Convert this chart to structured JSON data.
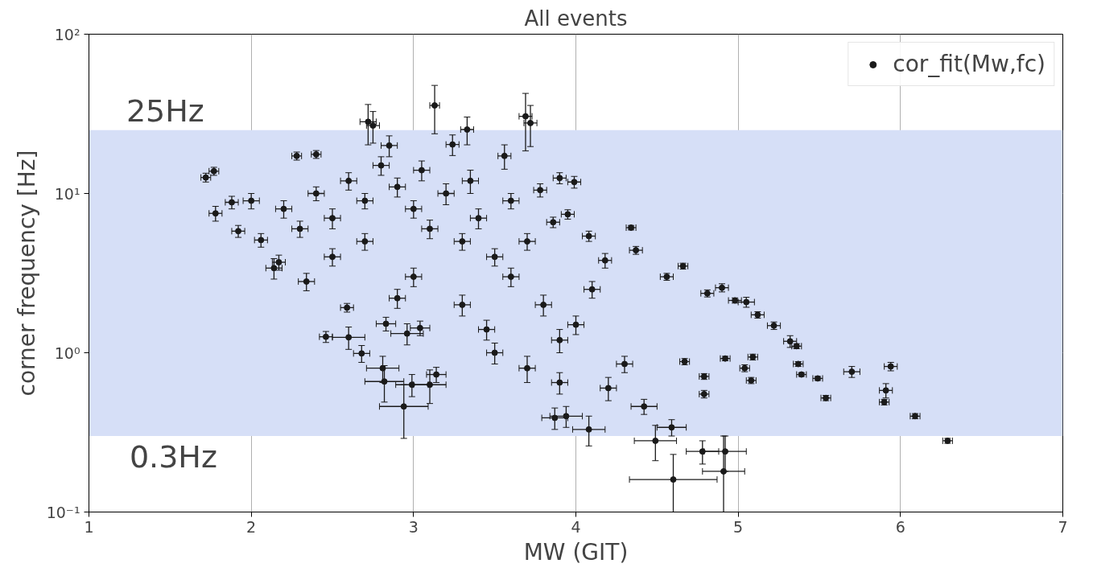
{
  "chart_data": {
    "type": "scatter",
    "title": "All events",
    "xlabel": "MW (GIT)",
    "ylabel": "corner frequency [Hz]",
    "xlim": [
      1,
      7
    ],
    "xticks": [
      1,
      2,
      3,
      4,
      5,
      6,
      7
    ],
    "ylim": [
      0.1,
      100
    ],
    "yticks": [
      {
        "value": 0.1,
        "label": "10⁻¹"
      },
      {
        "value": 1,
        "label": "10⁰"
      },
      {
        "value": 10,
        "label": "10¹"
      },
      {
        "value": 100,
        "label": "10²"
      }
    ],
    "log": "y",
    "grid": true,
    "legend": "top right",
    "marker": "circle",
    "bands": [
      {
        "axis": "y",
        "from": 0.3,
        "to": 25,
        "color": "#d6dff7"
      }
    ],
    "annotations": [
      {
        "text": "25Hz",
        "x": 1.23,
        "y": 25
      },
      {
        "text": "0.3Hz",
        "x": 1.25,
        "y": 0.3
      }
    ],
    "series": [
      {
        "name": "cor_fit(Mw,fc)",
        "color": "#1a1a1a",
        "x": [
          6.29,
          6.09,
          5.94,
          5.91,
          5.9,
          5.7,
          5.54,
          5.49,
          5.39,
          5.37,
          5.32,
          5.36,
          5.22,
          5.12,
          5.05,
          4.98,
          4.9,
          4.81,
          4.66,
          4.56,
          4.34,
          4.37,
          4.67,
          4.79,
          4.79,
          4.92,
          5.09,
          5.08,
          5.04,
          4.78,
          4.92,
          4.91,
          4.6,
          4.59,
          4.49,
          4.42,
          3.94,
          4.08,
          3.87,
          2.94,
          2.99,
          3.1,
          3.14,
          2.81,
          2.82,
          2.68,
          2.6,
          2.96,
          2.83,
          3.04,
          2.46,
          2.59,
          1.72,
          1.77,
          1.78,
          1.88,
          1.92,
          2.06,
          2.14,
          2.17,
          2.34,
          2.28,
          2.4,
          3.13,
          2.72,
          2.75,
          3.33,
          3.69,
          3.72,
          3.24,
          3.56,
          3.78,
          3.99,
          3.9,
          3.95,
          4.08,
          3.86,
          4.18,
          2.0,
          2.2,
          2.4,
          2.5,
          2.6,
          2.7,
          2.8,
          2.9,
          3.0,
          3.1,
          3.2,
          3.3,
          3.4,
          3.5,
          3.6,
          3.7,
          3.8,
          3.9,
          3.5,
          3.7,
          3.9,
          4.0,
          4.2,
          4.3,
          4.1,
          3.3,
          3.0,
          2.7,
          2.5,
          2.3,
          2.85,
          3.05,
          3.35,
          3.6,
          2.9,
          3.45
        ],
        "values": [
          0.28,
          0.4,
          0.82,
          0.58,
          0.49,
          0.76,
          0.52,
          0.69,
          0.73,
          0.85,
          1.18,
          1.1,
          1.48,
          1.73,
          2.08,
          2.13,
          2.56,
          2.36,
          3.5,
          3.0,
          6.1,
          4.4,
          0.88,
          0.71,
          0.55,
          0.92,
          0.94,
          0.67,
          0.8,
          0.24,
          0.24,
          0.18,
          0.16,
          0.34,
          0.28,
          0.46,
          0.4,
          0.33,
          0.39,
          0.46,
          0.63,
          0.63,
          0.73,
          0.8,
          0.66,
          0.99,
          1.25,
          1.32,
          1.52,
          1.43,
          1.26,
          1.92,
          12.6,
          13.8,
          7.5,
          8.8,
          5.8,
          5.1,
          3.4,
          3.7,
          2.8,
          17.2,
          17.6,
          35.7,
          28.2,
          26.7,
          25.2,
          30.5,
          27.7,
          20.3,
          17.2,
          10.5,
          11.8,
          12.5,
          7.4,
          5.4,
          6.6,
          3.8,
          9,
          8,
          10,
          7,
          12,
          9,
          15,
          11,
          8,
          6,
          10,
          5,
          7,
          4,
          3,
          5,
          2,
          1.2,
          1.0,
          0.8,
          0.65,
          1.5,
          0.6,
          0.85,
          2.5,
          2.0,
          3.0,
          5.0,
          4.0,
          6.0,
          20,
          14,
          12,
          9,
          2.2,
          1.4
        ],
        "xerrors": [
          0.03,
          0.03,
          0.04,
          0.04,
          0.03,
          0.05,
          0.03,
          0.03,
          0.03,
          0.03,
          0.04,
          0.03,
          0.04,
          0.04,
          0.05,
          0.04,
          0.04,
          0.04,
          0.03,
          0.04,
          0.03,
          0.04,
          0.03,
          0.03,
          0.03,
          0.03,
          0.03,
          0.03,
          0.03,
          0.1,
          0.13,
          0.13,
          0.27,
          0.09,
          0.13,
          0.08,
          0.1,
          0.1,
          0.08,
          0.15,
          0.1,
          0.1,
          0.06,
          0.1,
          0.12,
          0.05,
          0.1,
          0.1,
          0.06,
          0.06,
          0.04,
          0.04,
          0.03,
          0.03,
          0.04,
          0.04,
          0.04,
          0.04,
          0.05,
          0.04,
          0.05,
          0.03,
          0.03,
          0.03,
          0.05,
          0.04,
          0.04,
          0.04,
          0.04,
          0.04,
          0.04,
          0.04,
          0.04,
          0.04,
          0.04,
          0.04,
          0.04,
          0.04,
          0.05,
          0.05,
          0.05,
          0.05,
          0.05,
          0.05,
          0.05,
          0.05,
          0.05,
          0.05,
          0.05,
          0.05,
          0.05,
          0.05,
          0.05,
          0.05,
          0.05,
          0.05,
          0.05,
          0.05,
          0.05,
          0.05,
          0.05,
          0.05,
          0.05,
          0.05,
          0.05,
          0.05,
          0.05,
          0.05,
          0.05,
          0.05,
          0.05,
          0.05,
          0.05,
          0.05
        ],
        "errors": [
          0.01,
          0.015,
          0.05,
          0.06,
          0.02,
          0.06,
          0.02,
          0.02,
          0.02,
          0.03,
          0.1,
          0.04,
          0.08,
          0.08,
          0.15,
          0.08,
          0.15,
          0.12,
          0.15,
          0.15,
          0.2,
          0.25,
          0.04,
          0.03,
          0.03,
          0.03,
          0.04,
          0.03,
          0.04,
          0.04,
          0.06,
          0.12,
          0.07,
          0.04,
          0.07,
          0.05,
          0.06,
          0.07,
          0.06,
          0.17,
          0.1,
          0.15,
          0.08,
          0.15,
          0.17,
          0.12,
          0.2,
          0.2,
          0.15,
          0.15,
          0.1,
          0.12,
          0.8,
          0.8,
          0.8,
          0.8,
          0.5,
          0.5,
          0.5,
          0.4,
          0.35,
          1.0,
          1.0,
          12,
          8,
          6,
          5,
          12,
          8,
          3,
          3,
          1,
          1,
          1,
          0.5,
          0.4,
          0.5,
          0.4,
          1,
          1,
          1,
          1,
          1.5,
          1,
          2,
          1.5,
          1,
          0.8,
          1.5,
          0.6,
          1,
          0.5,
          0.4,
          0.6,
          0.3,
          0.2,
          0.15,
          0.15,
          0.1,
          0.2,
          0.1,
          0.1,
          0.3,
          0.3,
          0.4,
          0.6,
          0.5,
          0.7,
          3,
          2,
          2,
          1,
          0.3,
          0.2
        ]
      }
    ]
  }
}
